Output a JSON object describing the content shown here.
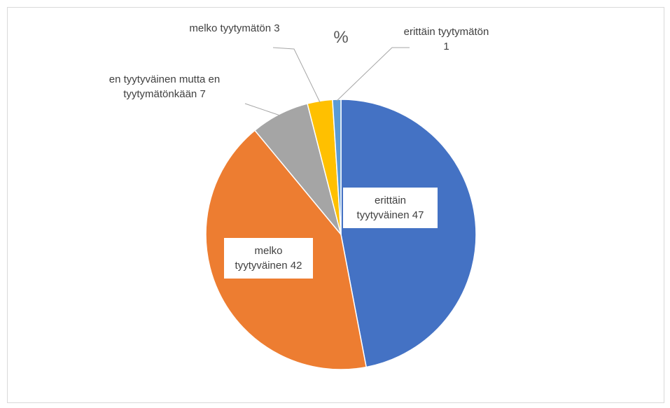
{
  "chart_data": {
    "type": "pie",
    "title": "%",
    "categories": [
      "erittäin tyytyväinen",
      "melko tyytyväinen",
      "en tyytyväinen mutta en tyytymätönkään",
      "melko tyytymätön",
      "erittäin tyytymätön"
    ],
    "values": [
      47,
      42,
      7,
      3,
      1
    ],
    "colors": [
      "#4472c4",
      "#ed7d31",
      "#a5a5a5",
      "#ffc000",
      "#5b9bd5"
    ]
  }
}
